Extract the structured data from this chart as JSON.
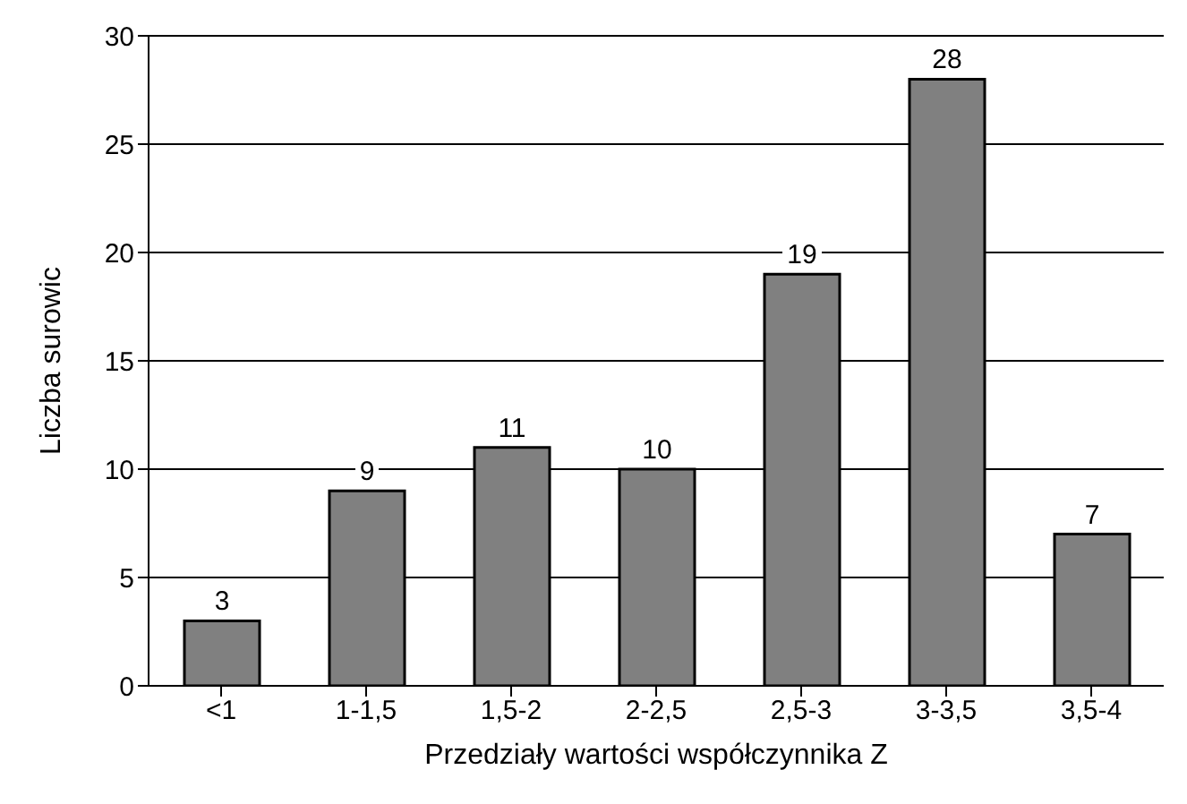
{
  "chart_data": {
    "type": "bar",
    "xlabel": "Przedziały wartości współczynnika Z",
    "ylabel": "Liczba surowic",
    "categories": [
      "<1",
      "1-1,5",
      "1,5-2",
      "2-2,5",
      "2,5-3",
      "3-3,5",
      "3,5-4"
    ],
    "values": [
      3,
      9,
      11,
      10,
      19,
      28,
      7
    ],
    "color": "#808080",
    "ylim": [
      0,
      30
    ],
    "yticks": [
      0,
      5,
      10,
      15,
      20,
      25,
      30
    ],
    "grid": "y",
    "data_labels": true
  }
}
